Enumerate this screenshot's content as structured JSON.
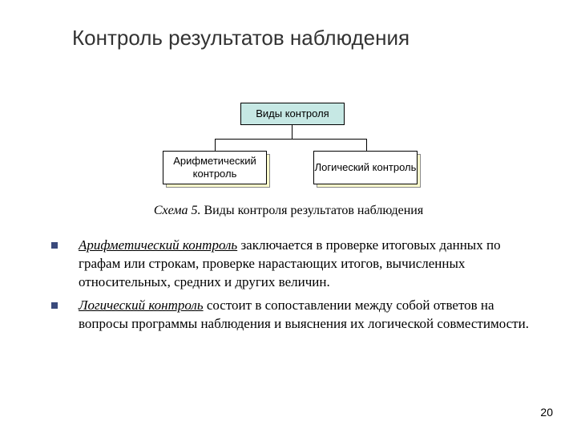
{
  "title": "Контроль результатов наблюдения",
  "diagram": {
    "top_box": "Виды контроля",
    "left_box": "Арифметический контроль",
    "right_box": "Логический контроль",
    "colors": {
      "top_bg": "#c6e8e4",
      "child_bg": "#ffffff",
      "shadow_bg": "#ffffcc",
      "border": "#000000"
    }
  },
  "caption": {
    "label": "Схема 5.",
    "text": "Виды контроля результатов наблюдения"
  },
  "bullets": [
    {
      "term": "Арифметический контроль",
      "rest": " заключается в проверке итоговых данных по графам или строкам, проверке нарастающих итогов, вычисленных относительных, средних и других величин."
    },
    {
      "term": "Логический контроль",
      "rest": " состоит в сопоставлении между собой ответов на вопросы программы наблюдения и выяснения их логической совместимости."
    }
  ],
  "page_number": "20",
  "style": {
    "bullet_color": "#3a4a7c",
    "title_fontsize": 26,
    "body_fontsize": 17,
    "caption_fontsize": 16
  }
}
